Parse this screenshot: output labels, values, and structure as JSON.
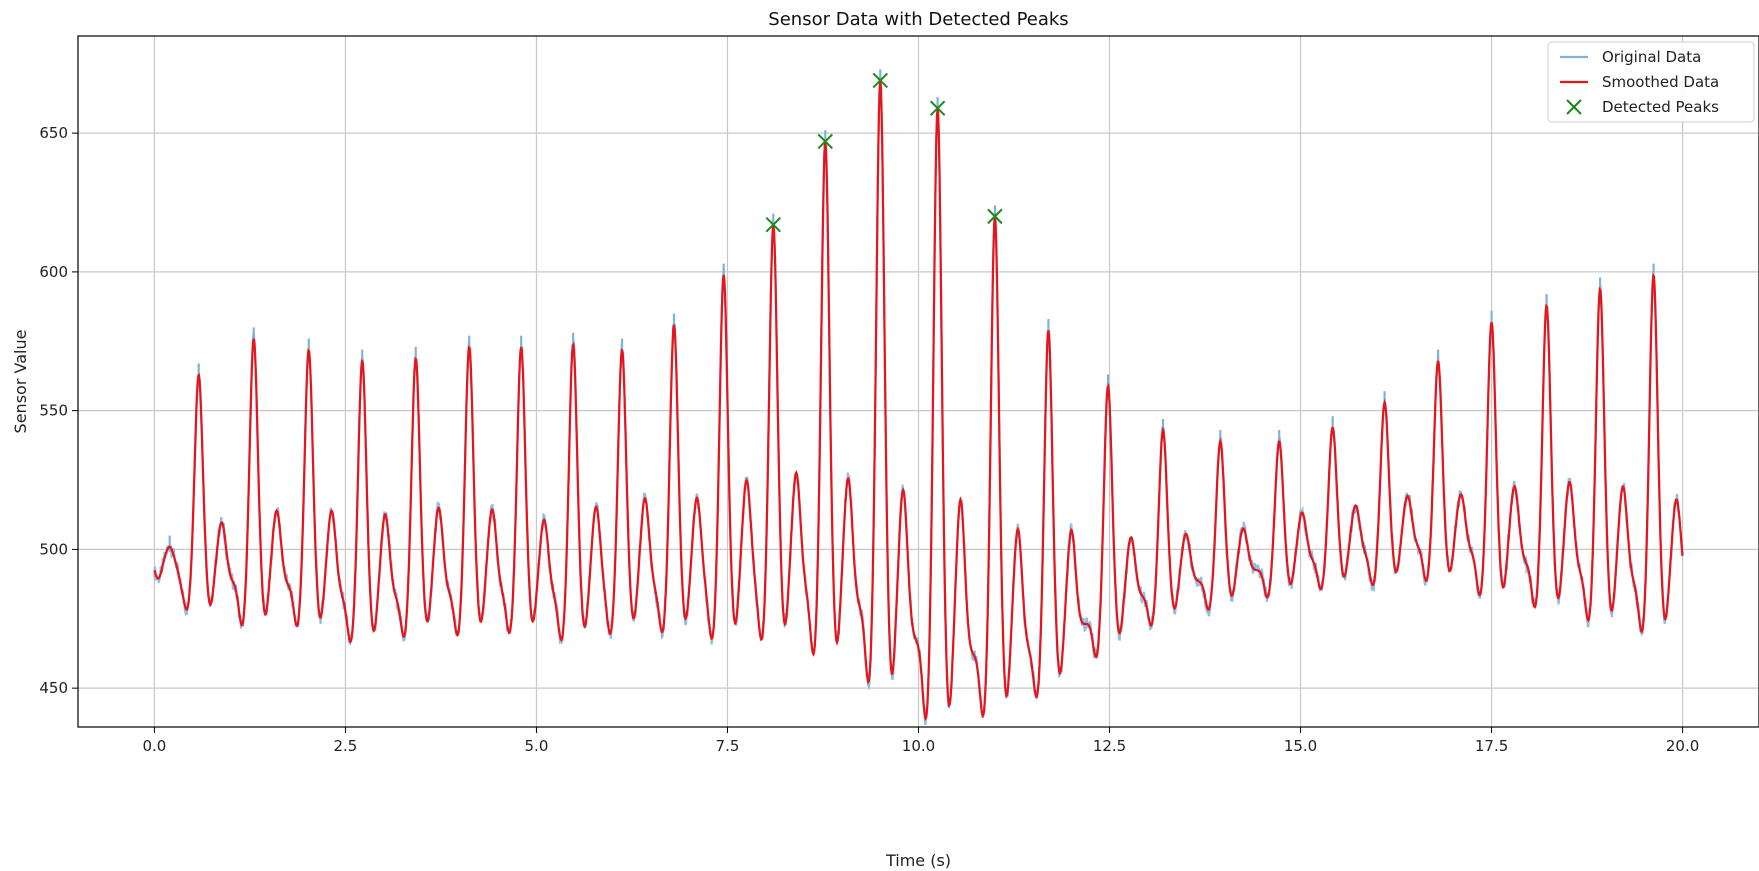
{
  "chart_data": {
    "type": "line",
    "title": "Sensor Data with Detected Peaks",
    "xlabel": "Time (s)",
    "ylabel": "Sensor Value",
    "xlim": [
      -1.0,
      21.0
    ],
    "ylim": [
      436,
      685
    ],
    "xticks": [
      0.0,
      2.5,
      5.0,
      7.5,
      10.0,
      12.5,
      15.0,
      17.5,
      20.0
    ],
    "xtick_labels": [
      "0.0",
      "2.5",
      "5.0",
      "7.5",
      "10.0",
      "12.5",
      "15.0",
      "17.5",
      "20.0"
    ],
    "yticks": [
      450,
      500,
      550,
      600,
      650
    ],
    "ytick_labels": [
      "450",
      "500",
      "550",
      "600",
      "650"
    ],
    "grid": true,
    "legend_position": "top-right",
    "colors": {
      "original": "#7fb2d9",
      "smoothed": "#e8141c",
      "peaks": "#1a8a1a",
      "grid": "#c8c8c8",
      "axes": "#000000"
    },
    "legend": [
      {
        "label": "Original Data",
        "marker": "line",
        "color": "#7fb2d9"
      },
      {
        "label": "Smoothed Data",
        "marker": "line",
        "color": "#e8141c"
      },
      {
        "label": "Detected Peaks",
        "marker": "x",
        "color": "#1a8a1a"
      }
    ],
    "beats": [
      {
        "t": 0.2,
        "peak": 501,
        "second": 496,
        "base": 496
      },
      {
        "t": 0.58,
        "peak": 563,
        "second": 511,
        "base": 490
      },
      {
        "t": 1.3,
        "peak": 576,
        "second": 514,
        "base": 487
      },
      {
        "t": 2.02,
        "peak": 572,
        "second": 517,
        "base": 487
      },
      {
        "t": 2.72,
        "peak": 568,
        "second": 511,
        "base": 480
      },
      {
        "t": 3.42,
        "peak": 569,
        "second": 515,
        "base": 484
      },
      {
        "t": 4.12,
        "peak": 573,
        "second": 514,
        "base": 484
      },
      {
        "t": 4.8,
        "peak": 573,
        "second": 512,
        "base": 485
      },
      {
        "t": 5.48,
        "peak": 574,
        "second": 514,
        "base": 482
      },
      {
        "t": 6.12,
        "peak": 572,
        "second": 518,
        "base": 485
      },
      {
        "t": 6.8,
        "peak": 581,
        "second": 519,
        "base": 486
      },
      {
        "t": 7.45,
        "peak": 599,
        "second": 524,
        "base": 485
      },
      {
        "t": 8.1,
        "peak": 617,
        "second": 529,
        "base": 487
      },
      {
        "t": 8.78,
        "peak": 647,
        "second": 529,
        "base": 484
      },
      {
        "t": 9.5,
        "peak": 669,
        "second": 527,
        "base": 476
      },
      {
        "t": 10.25,
        "peak": 659,
        "second": 518,
        "base": 462
      },
      {
        "t": 11.0,
        "peak": 620,
        "second": 506,
        "base": 462
      },
      {
        "t": 11.7,
        "peak": 579,
        "second": 502,
        "base": 465
      },
      {
        "t": 12.48,
        "peak": 559,
        "second": 501,
        "base": 478
      },
      {
        "t": 13.2,
        "peak": 543,
        "second": 504,
        "base": 486
      },
      {
        "t": 13.95,
        "peak": 539,
        "second": 506,
        "base": 490
      },
      {
        "t": 14.72,
        "peak": 539,
        "second": 512,
        "base": 494
      },
      {
        "t": 15.42,
        "peak": 544,
        "second": 515,
        "base": 497
      },
      {
        "t": 16.1,
        "peak": 553,
        "second": 518,
        "base": 499
      },
      {
        "t": 16.8,
        "peak": 568,
        "second": 522,
        "base": 502
      },
      {
        "t": 17.5,
        "peak": 582,
        "second": 524,
        "base": 497
      },
      {
        "t": 18.22,
        "peak": 588,
        "second": 526,
        "base": 494
      },
      {
        "t": 18.92,
        "peak": 594,
        "second": 524,
        "base": 490
      },
      {
        "t": 19.62,
        "peak": 599,
        "second": 518,
        "base": 487
      }
    ],
    "detected_peaks": [
      {
        "x": 8.1,
        "y": 617
      },
      {
        "x": 8.78,
        "y": 647
      },
      {
        "x": 9.5,
        "y": 669
      },
      {
        "x": 10.25,
        "y": 659
      },
      {
        "x": 11.0,
        "y": 620
      }
    ]
  }
}
